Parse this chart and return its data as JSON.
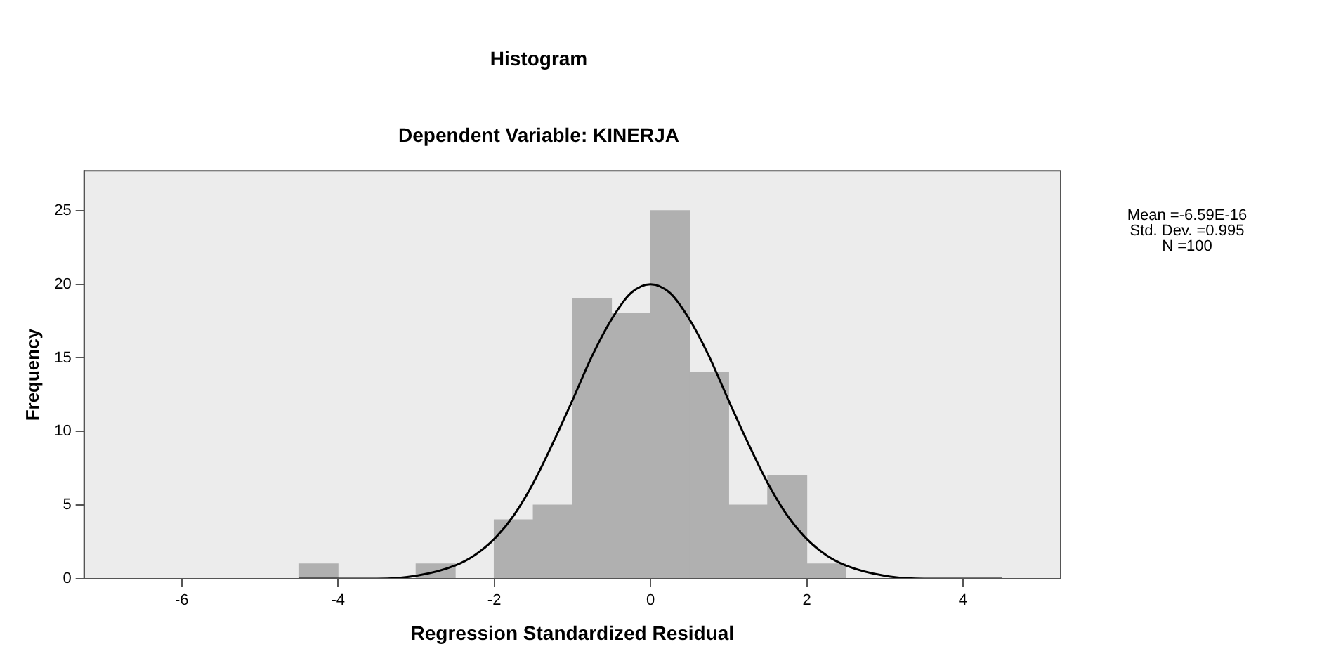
{
  "chart_data": {
    "type": "histogram",
    "title": "Histogram",
    "subtitle": "Dependent Variable: KINERJA",
    "xlabel": "Regression Standardized Residual",
    "ylabel": "Frequency",
    "bins": [
      -4.5,
      -4,
      -3.5,
      -3,
      -2.5,
      -2,
      -1.5,
      -1,
      -0.5,
      0,
      0.5,
      1,
      1.5,
      2,
      2.5
    ],
    "values": [
      1,
      0,
      0,
      1,
      0,
      4,
      5,
      19,
      18,
      25,
      14,
      5,
      7,
      1
    ],
    "color": "#b0b0b0",
    "series": [
      {
        "type": "line",
        "color": "#000000",
        "x": [
          -4.5,
          -4,
          -3.5,
          -3,
          -2.5,
          -2.25,
          -2,
          -1.75,
          -1.5,
          -1.25,
          -1,
          -0.75,
          -0.5,
          -0.25,
          0,
          0.25,
          0.5,
          0.75,
          1,
          1.25,
          1.5,
          1.75,
          2,
          2.25,
          2.5,
          3,
          3.5,
          4,
          4.5
        ],
        "values": [
          0,
          0,
          0,
          0.2,
          0.9,
          1.6,
          2.7,
          4.3,
          6.5,
          9.2,
          12.1,
          15.1,
          17.6,
          19.4,
          20,
          19.4,
          17.6,
          15.1,
          12.1,
          9.2,
          6.5,
          4.3,
          2.7,
          1.6,
          0.9,
          0.2,
          0,
          0,
          0
        ]
      }
    ],
    "xlim": [
      -7.25,
      5.25
    ],
    "xticks": [
      -6,
      -4,
      -2,
      0,
      2,
      4
    ],
    "ylim": [
      0,
      27.7
    ],
    "yticks": [
      0,
      5,
      10,
      15,
      20,
      25
    ],
    "grid": false,
    "legend": false,
    "marker": "none",
    "annotations": [
      "Mean =-6.59E-16",
      "Std. Dev. =0.995",
      "N =100"
    ]
  }
}
